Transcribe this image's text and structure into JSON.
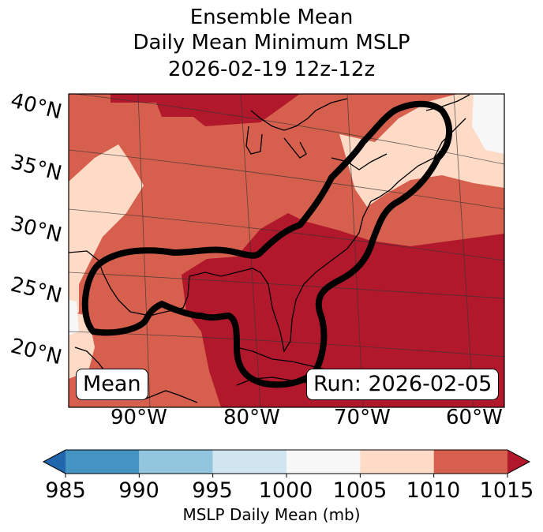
{
  "title": {
    "line1": "Ensemble Mean",
    "line2": "Daily Mean Minimum MSLP",
    "line3": "2026-02-19 12z-12z"
  },
  "latitude_labels": [
    "40°N",
    "35°N",
    "30°N",
    "25°N",
    "20°N"
  ],
  "longitude_labels": [
    "90°W",
    "80°W",
    "70°W",
    "60°W"
  ],
  "mean_box": "Mean",
  "run_box": "Run: 2026-02-05",
  "colorbar": {
    "label": "MSLP Daily Mean (mb)",
    "ticks": [
      "985",
      "990",
      "995",
      "1000",
      "1005",
      "1010",
      "1015"
    ],
    "bins": [
      {
        "range": "<985",
        "color": "#2166ac"
      },
      {
        "range": "985-990",
        "color": "#4393c3"
      },
      {
        "range": "990-995",
        "color": "#92c5de"
      },
      {
        "range": "995-1000",
        "color": "#d1e5f0"
      },
      {
        "range": "1000-1005",
        "color": "#f7f7f7"
      },
      {
        "range": "1005-1010",
        "color": "#fddbc7"
      },
      {
        "range": "1010-1015",
        "color": "#d6604d"
      },
      {
        "range": ">1015",
        "color": "#b2182b"
      }
    ]
  },
  "colors": {
    "above_1015": "#b2182b",
    "p1010_1015": "#d6604d",
    "p1005_1010": "#fddbc7",
    "p1000_1005": "#f7f7f7"
  }
}
